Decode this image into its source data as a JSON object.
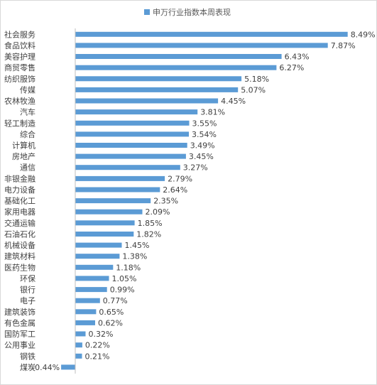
{
  "chart_data": {
    "type": "bar",
    "orientation": "horizontal",
    "legend": {
      "position": "top",
      "label": "申万行业指数本周表现"
    },
    "colors": {
      "bar": "#5b9bd5",
      "text": "#404040",
      "axis": "#bfbfbf",
      "frame": "#d9d9d9"
    },
    "categories": [
      "社会服务",
      "食品饮料",
      "美容护理",
      "商贸零售",
      "纺织服饰",
      "传媒",
      "农林牧渔",
      "汽车",
      "轻工制造",
      "综合",
      "计算机",
      "房地产",
      "通信",
      "非银金融",
      "电力设备",
      "基础化工",
      "家用电器",
      "交通运输",
      "石油石化",
      "机械设备",
      "建筑材料",
      "医药生物",
      "环保",
      "银行",
      "电子",
      "建筑装饰",
      "有色金属",
      "国防军工",
      "公用事业",
      "钢铁",
      "煤炭"
    ],
    "values": [
      8.49,
      7.87,
      6.43,
      6.27,
      5.18,
      5.07,
      4.45,
      3.81,
      3.55,
      3.54,
      3.49,
      3.45,
      3.27,
      2.79,
      2.64,
      2.35,
      2.09,
      1.85,
      1.82,
      1.45,
      1.38,
      1.18,
      1.05,
      0.99,
      0.77,
      0.65,
      0.62,
      0.32,
      0.22,
      0.21,
      -0.44
    ],
    "data_labels": [
      "8.49%",
      "7.87%",
      "6.43%",
      "6.27%",
      "5.18%",
      "5.07%",
      "4.45%",
      "3.81%",
      "3.55%",
      "3.54%",
      "3.49%",
      "3.45%",
      "3.27%",
      "2.79%",
      "2.64%",
      "2.35%",
      "2.09%",
      "1.85%",
      "1.82%",
      "1.45%",
      "1.38%",
      "1.18%",
      "1.05%",
      "0.99%",
      "0.77%",
      "0.65%",
      "0.62%",
      "0.32%",
      "0.22%",
      "0.21%",
      "-0.44%"
    ],
    "unit": "%"
  }
}
